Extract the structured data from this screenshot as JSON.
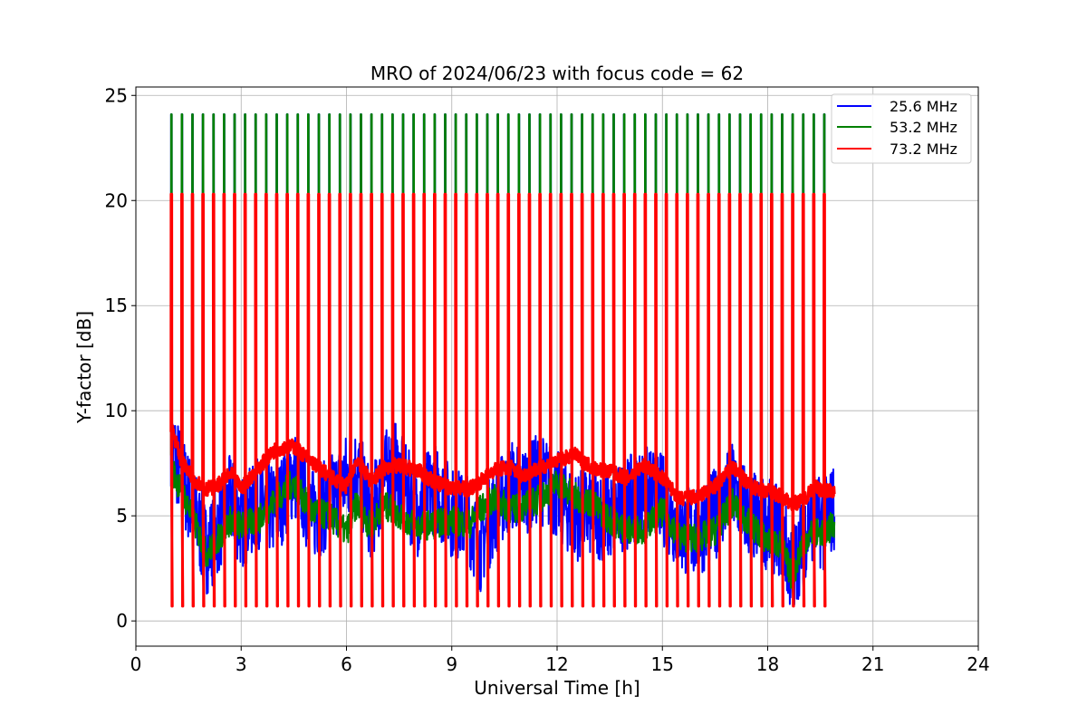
{
  "chart_data": {
    "type": "line",
    "title": "MRO of 2024/06/23 with focus code = 62",
    "xlabel": "Universal Time [h]",
    "ylabel": "Y-factor [dB]",
    "xlim": [
      0,
      24
    ],
    "ylim": [
      -1.2,
      25.4
    ],
    "xticks": [
      0,
      3,
      6,
      9,
      12,
      15,
      18,
      21,
      24
    ],
    "yticks": [
      0,
      5,
      10,
      15,
      20,
      25
    ],
    "grid": true,
    "legend_position": "top-right",
    "calibration": {
      "start_h": 1.0,
      "end_h": 19.75,
      "interval_h": 0.3,
      "peak_values_db": {
        "25.6 MHz": 24.1,
        "53.2 MHz": 24.1,
        "73.2 MHz": 20.3
      },
      "low_values_db": {
        "25.6 MHz": 0.8,
        "53.2 MHz": 0.8,
        "73.2 MHz": 0.7
      }
    },
    "series": [
      {
        "name": "25.6 MHz",
        "color": "#0000ff",
        "x": [
          1.0,
          1.3,
          1.6,
          2.0,
          2.3,
          2.7,
          3.0,
          3.5,
          4.0,
          4.5,
          5.0,
          5.5,
          6.0,
          6.3,
          6.7,
          7.0,
          7.3,
          7.7,
          8.0,
          8.5,
          9.0,
          9.5,
          9.8,
          10.2,
          10.7,
          11.0,
          11.5,
          12.0,
          12.5,
          13.0,
          13.5,
          14.0,
          14.5,
          15.0,
          15.5,
          16.0,
          16.5,
          17.0,
          17.5,
          18.0,
          18.4,
          18.7,
          19.0,
          19.3,
          19.6,
          19.9
        ],
        "values": [
          8.6,
          6.8,
          5.5,
          3.4,
          4.2,
          5.8,
          4.6,
          5.6,
          5.2,
          7.1,
          5.0,
          5.6,
          6.8,
          7.2,
          5.0,
          6.4,
          7.6,
          6.2,
          5.2,
          6.4,
          5.2,
          4.8,
          3.5,
          5.2,
          6.5,
          6.2,
          6.8,
          6.0,
          5.0,
          5.2,
          4.9,
          5.6,
          6.2,
          5.8,
          4.4,
          4.2,
          5.1,
          6.3,
          5.0,
          4.6,
          4.2,
          2.2,
          4.0,
          5.0,
          4.5,
          5.5
        ]
      },
      {
        "name": "53.2 MHz",
        "color": "#008000",
        "x": [
          1.0,
          1.3,
          1.6,
          2.0,
          2.3,
          2.7,
          3.0,
          3.5,
          4.0,
          4.5,
          5.0,
          5.5,
          6.0,
          6.3,
          6.7,
          7.0,
          7.3,
          7.7,
          8.0,
          8.5,
          9.0,
          9.5,
          9.8,
          10.2,
          10.7,
          11.0,
          11.5,
          12.0,
          12.5,
          13.0,
          13.5,
          14.0,
          14.5,
          15.0,
          15.5,
          16.0,
          16.5,
          17.0,
          17.5,
          18.0,
          18.4,
          18.7,
          19.0,
          19.3,
          19.6,
          19.9
        ],
        "values": [
          7.3,
          6.2,
          5.0,
          3.2,
          3.8,
          4.8,
          4.5,
          4.8,
          5.8,
          6.6,
          5.2,
          5.0,
          4.2,
          5.6,
          4.4,
          5.5,
          5.3,
          4.8,
          4.5,
          4.6,
          4.8,
          4.6,
          5.3,
          5.8,
          5.3,
          5.4,
          5.8,
          6.6,
          5.9,
          5.6,
          4.8,
          4.3,
          4.4,
          5.2,
          4.0,
          3.9,
          4.3,
          5.6,
          4.6,
          3.8,
          3.6,
          2.0,
          3.8,
          4.2,
          4.2,
          4.6
        ]
      },
      {
        "name": "73.2 MHz",
        "color": "#ff0000",
        "x": [
          1.0,
          1.3,
          1.6,
          2.0,
          2.3,
          2.7,
          3.0,
          3.5,
          4.0,
          4.5,
          5.0,
          5.5,
          6.0,
          6.3,
          6.7,
          7.0,
          7.3,
          7.7,
          8.0,
          8.5,
          9.0,
          9.5,
          9.8,
          10.2,
          10.7,
          11.0,
          11.5,
          12.0,
          12.5,
          13.0,
          13.5,
          14.0,
          14.5,
          15.0,
          15.5,
          16.0,
          16.5,
          17.0,
          17.5,
          18.0,
          18.4,
          18.7,
          19.0,
          19.3,
          19.6,
          19.9
        ],
        "values": [
          9.3,
          7.6,
          6.8,
          6.3,
          6.4,
          7.0,
          6.3,
          7.3,
          8.2,
          8.3,
          7.6,
          6.9,
          6.4,
          7.7,
          6.6,
          7.2,
          7.4,
          7.3,
          7.2,
          6.6,
          6.3,
          6.3,
          6.6,
          7.2,
          7.3,
          6.9,
          7.3,
          7.6,
          7.9,
          7.3,
          7.1,
          6.8,
          7.4,
          6.8,
          5.8,
          5.9,
          6.4,
          7.3,
          6.4,
          6.2,
          5.9,
          5.6,
          5.7,
          6.4,
          6.2,
          6.2
        ]
      }
    ]
  }
}
